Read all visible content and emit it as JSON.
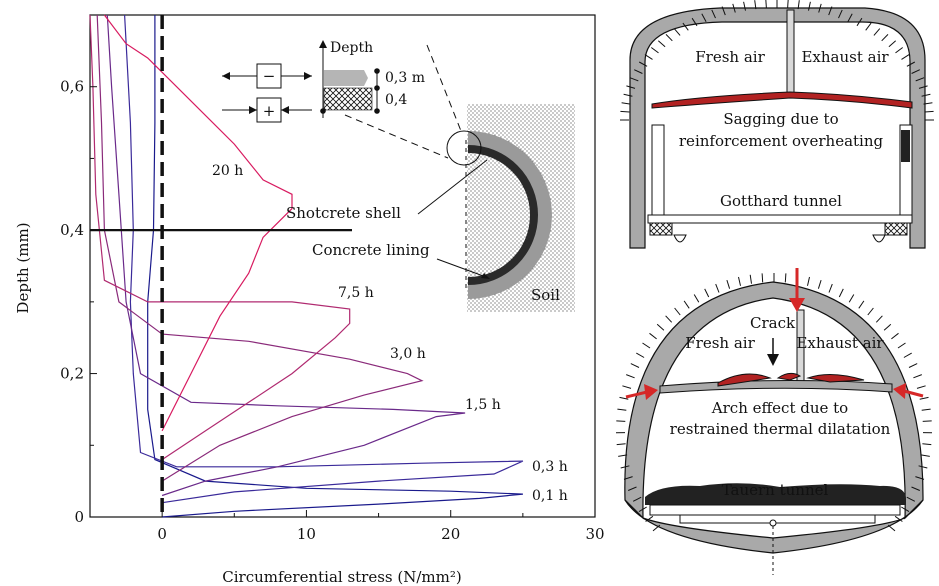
{
  "chart_data": {
    "type": "line",
    "xlabel": "Circumferential stress (N/mm²)",
    "ylabel": "Depth (mm)",
    "xlim": [
      -5,
      30
    ],
    "ylim": [
      0,
      0.7
    ],
    "xticks": [
      "0",
      "10",
      "20",
      "30"
    ],
    "yticks": [
      "0",
      "0,2",
      "0,4",
      "0,6"
    ],
    "reference_lines": {
      "vertical_dashed_x": 0,
      "horizontal_y": 0.4
    },
    "series": [
      {
        "name": "0,1 h",
        "color": "#1a1a8c",
        "points": [
          [
            0,
            0
          ],
          [
            5,
            0.008
          ],
          [
            15,
            0.018
          ],
          [
            22,
            0.026
          ],
          [
            25,
            0.032
          ],
          [
            20,
            0.036
          ],
          [
            10,
            0.04
          ],
          [
            3,
            0.05
          ],
          [
            -0.5,
            0.08
          ],
          [
            -1.0,
            0.15
          ],
          [
            -1.0,
            0.3
          ],
          [
            -0.6,
            0.4
          ],
          [
            -0.5,
            0.55
          ],
          [
            -0.5,
            0.7
          ]
        ]
      },
      {
        "name": "0,3 h",
        "color": "#3a2a9a",
        "points": [
          [
            0,
            0.02
          ],
          [
            5,
            0.035
          ],
          [
            15,
            0.05
          ],
          [
            23,
            0.06
          ],
          [
            25,
            0.078
          ],
          [
            18,
            0.075
          ],
          [
            8,
            0.07
          ],
          [
            1,
            0.07
          ],
          [
            -1.5,
            0.09
          ],
          [
            -2.0,
            0.2
          ],
          [
            -2.2,
            0.3
          ],
          [
            -2.0,
            0.4
          ],
          [
            -2.2,
            0.55
          ],
          [
            -2.6,
            0.7
          ]
        ]
      },
      {
        "name": "1,5 h",
        "color": "#6a2a8a",
        "points": [
          [
            0,
            0.03
          ],
          [
            3,
            0.05
          ],
          [
            8,
            0.07
          ],
          [
            14,
            0.1
          ],
          [
            19,
            0.14
          ],
          [
            21,
            0.145
          ],
          [
            16,
            0.15
          ],
          [
            8,
            0.155
          ],
          [
            2,
            0.16
          ],
          [
            -1.5,
            0.2
          ],
          [
            -2.5,
            0.3
          ],
          [
            -3.0,
            0.45
          ],
          [
            -3.5,
            0.6
          ],
          [
            -3.8,
            0.7
          ]
        ]
      },
      {
        "name": "3,0 h",
        "color": "#8a2a7a",
        "points": [
          [
            0,
            0.05
          ],
          [
            4,
            0.1
          ],
          [
            9,
            0.14
          ],
          [
            14,
            0.17
          ],
          [
            18,
            0.19
          ],
          [
            17,
            0.2
          ],
          [
            13,
            0.22
          ],
          [
            6,
            0.245
          ],
          [
            0,
            0.255
          ],
          [
            -3,
            0.3
          ],
          [
            -4,
            0.4
          ],
          [
            -4.2,
            0.55
          ],
          [
            -4.5,
            0.7
          ]
        ]
      },
      {
        "name": "7,5 h",
        "color": "#b02a70",
        "points": [
          [
            0,
            0.08
          ],
          [
            3,
            0.12
          ],
          [
            6,
            0.16
          ],
          [
            9,
            0.2
          ],
          [
            12,
            0.25
          ],
          [
            13,
            0.27
          ],
          [
            13,
            0.29
          ],
          [
            9,
            0.3
          ],
          [
            4,
            0.3
          ],
          [
            -1,
            0.3
          ],
          [
            -4,
            0.33
          ],
          [
            -4.6,
            0.45
          ],
          [
            -4.8,
            0.6
          ],
          [
            -5,
            0.7
          ]
        ]
      },
      {
        "name": "20 h",
        "color": "#d81b60",
        "points": [
          [
            0,
            0.12
          ],
          [
            2,
            0.2
          ],
          [
            4,
            0.28
          ],
          [
            6,
            0.34
          ],
          [
            7,
            0.39
          ],
          [
            9,
            0.43
          ],
          [
            9,
            0.45
          ],
          [
            7,
            0.47
          ],
          [
            5,
            0.52
          ],
          [
            1,
            0.6
          ],
          [
            -1,
            0.64
          ],
          [
            -2.5,
            0.66
          ],
          [
            -4,
            0.7
          ]
        ]
      }
    ]
  },
  "inset": {
    "depth_label": "Depth",
    "minus": "−",
    "plus": "+",
    "layer_top": "0,3 m",
    "layer_bottom": "0,4",
    "shotcrete_label": "Shotcrete shell",
    "lining_label": "Concrete lining",
    "soil_label": "Soil"
  },
  "gotthard": {
    "fresh_air": "Fresh air",
    "exhaust_air": "Exhaust air",
    "caption_line1": "Sagging due to",
    "caption_line2": "reinforcement overheating",
    "name": "Gotthard tunnel"
  },
  "tauern": {
    "fresh_air": "Fresh air",
    "crack": "Crack",
    "exhaust_air": "Exhaust air",
    "caption_line1": "Arch effect due to",
    "caption_line2": "restrained thermal dilatation",
    "name": "Tauern tunnel"
  },
  "colors": {
    "lining": "#a9a9a9",
    "deck_red": "#b22222",
    "arrow_red": "#d62828",
    "dark": "#222222"
  }
}
